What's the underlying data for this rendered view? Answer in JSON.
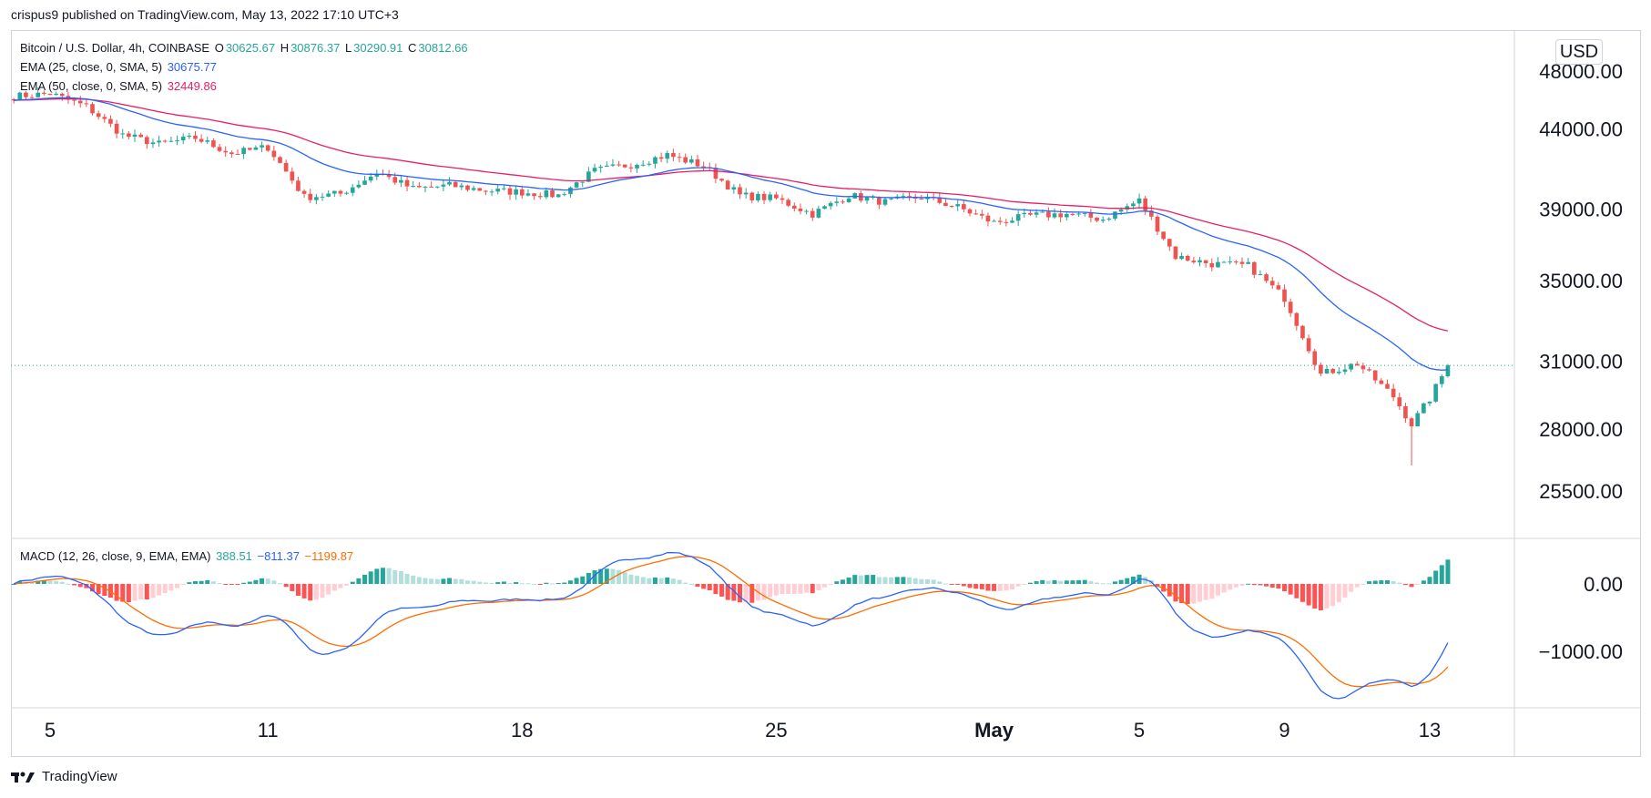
{
  "header": {
    "text": "crispus9 published on TradingView.com, May 13, 2022 17:10 UTC+3"
  },
  "legend": {
    "symbol": "Bitcoin / U.S. Dollar, 4h, COINBASE",
    "open_label": "O",
    "open": "30625.67",
    "high_label": "H",
    "high": "30876.37",
    "low_label": "L",
    "low": "30290.91",
    "close_label": "C",
    "close": "30812.66",
    "ema25_label": "EMA (25, close, 0, SMA, 5)",
    "ema25_value": "30675.77",
    "ema50_label": "EMA (50, close, 0, SMA, 5)",
    "ema50_value": "32449.86",
    "macd_label": "MACD (12, 26, close, 9, EMA, EMA)",
    "macd_hist": "388.51",
    "macd_line": "−811.37",
    "macd_signal": "−1199.87"
  },
  "currency": "USD",
  "footer": {
    "brand": "TradingView"
  },
  "colors": {
    "up": "#26a69a",
    "down": "#ef5350",
    "ema25": "#2962ff",
    "ema50": "#e91e63",
    "macd_line": "#2962ff",
    "macd_signal": "#ff6d00",
    "hist_up_strong": "#26a69a",
    "hist_up_weak": "#b2dfdb",
    "hist_down_strong": "#ff5252",
    "hist_down_weak": "#ffcdd2",
    "last_price_line": "#26a69a"
  },
  "chart_data": {
    "type": "candlestick",
    "price_axis": {
      "ticks": [
        {
          "value": 48000,
          "label": "48000.00"
        },
        {
          "value": 44000,
          "label": "44000.00"
        },
        {
          "value": 39000,
          "label": "39000.00"
        },
        {
          "value": 35000,
          "label": "35000.00"
        },
        {
          "value": 31000,
          "label": "31000.00"
        },
        {
          "value": 28000,
          "label": "28000.00"
        },
        {
          "value": 25500,
          "label": "25500.00"
        }
      ],
      "scale": "log"
    },
    "macd_axis": {
      "ticks": [
        {
          "value": 0,
          "label": "0.00"
        },
        {
          "value": -1000,
          "label": "−1000.00"
        }
      ]
    },
    "x_axis": {
      "ticks": [
        {
          "label": "5",
          "date": "2022-04-05"
        },
        {
          "label": "11",
          "date": "2022-04-11"
        },
        {
          "label": "18",
          "date": "2022-04-18"
        },
        {
          "label": "25",
          "date": "2022-04-25"
        },
        {
          "label": "May",
          "date": "2022-05-01",
          "bold": true
        },
        {
          "label": "5",
          "date": "2022-05-05"
        },
        {
          "label": "9",
          "date": "2022-05-09"
        },
        {
          "label": "13",
          "date": "2022-05-13"
        }
      ]
    },
    "last_price": 30812.66,
    "close_anchors": [
      {
        "date": "2022-04-04",
        "close": 46200
      },
      {
        "date": "2022-04-05",
        "close": 46400
      },
      {
        "date": "2022-04-06",
        "close": 45500
      },
      {
        "date": "2022-04-07",
        "close": 43600
      },
      {
        "date": "2022-04-08",
        "close": 43000
      },
      {
        "date": "2022-04-09",
        "close": 43400
      },
      {
        "date": "2022-04-10",
        "close": 42400
      },
      {
        "date": "2022-04-11",
        "close": 42800
      },
      {
        "date": "2022-04-12",
        "close": 39700
      },
      {
        "date": "2022-04-13",
        "close": 39900
      },
      {
        "date": "2022-04-14",
        "close": 41200
      },
      {
        "date": "2022-04-15",
        "close": 40200
      },
      {
        "date": "2022-04-16",
        "close": 40400
      },
      {
        "date": "2022-04-17",
        "close": 40100
      },
      {
        "date": "2022-04-18",
        "close": 40000
      },
      {
        "date": "2022-04-19",
        "close": 39800
      },
      {
        "date": "2022-04-20",
        "close": 41300
      },
      {
        "date": "2022-04-21",
        "close": 41700
      },
      {
        "date": "2022-04-22",
        "close": 42300
      },
      {
        "date": "2022-04-23",
        "close": 41600
      },
      {
        "date": "2022-04-24",
        "close": 39800
      },
      {
        "date": "2022-04-25",
        "close": 39600
      },
      {
        "date": "2022-04-26",
        "close": 38700
      },
      {
        "date": "2022-04-27",
        "close": 39800
      },
      {
        "date": "2022-04-28",
        "close": 39400
      },
      {
        "date": "2022-04-29",
        "close": 39700
      },
      {
        "date": "2022-04-30",
        "close": 39100
      },
      {
        "date": "2022-05-01",
        "close": 38200
      },
      {
        "date": "2022-05-02",
        "close": 38600
      },
      {
        "date": "2022-05-03",
        "close": 38700
      },
      {
        "date": "2022-05-04",
        "close": 38400
      },
      {
        "date": "2022-05-05",
        "close": 39500
      },
      {
        "date": "2022-05-06",
        "close": 36300
      },
      {
        "date": "2022-05-07",
        "close": 35900
      },
      {
        "date": "2022-05-08",
        "close": 35800
      },
      {
        "date": "2022-05-09",
        "close": 34100
      },
      {
        "date": "2022-05-10",
        "close": 30400
      },
      {
        "date": "2022-05-11",
        "close": 30900
      },
      {
        "date": "2022-05-12",
        "close": 29400
      },
      {
        "date": "2022-05-12T12:00",
        "close": 28200
      },
      {
        "date": "2022-05-13",
        "close": 29300
      },
      {
        "date": "2022-05-13T12:00",
        "close": 30812.66
      }
    ],
    "low_marker": {
      "date": "2022-05-12",
      "low": 26500
    },
    "ema": [
      {
        "name": "EMA 25",
        "last": 30675.77
      },
      {
        "name": "EMA 50",
        "last": 32449.86
      }
    ],
    "macd": {
      "last_hist": 388.51,
      "last_macd": -811.37,
      "last_signal": -1199.87
    }
  }
}
